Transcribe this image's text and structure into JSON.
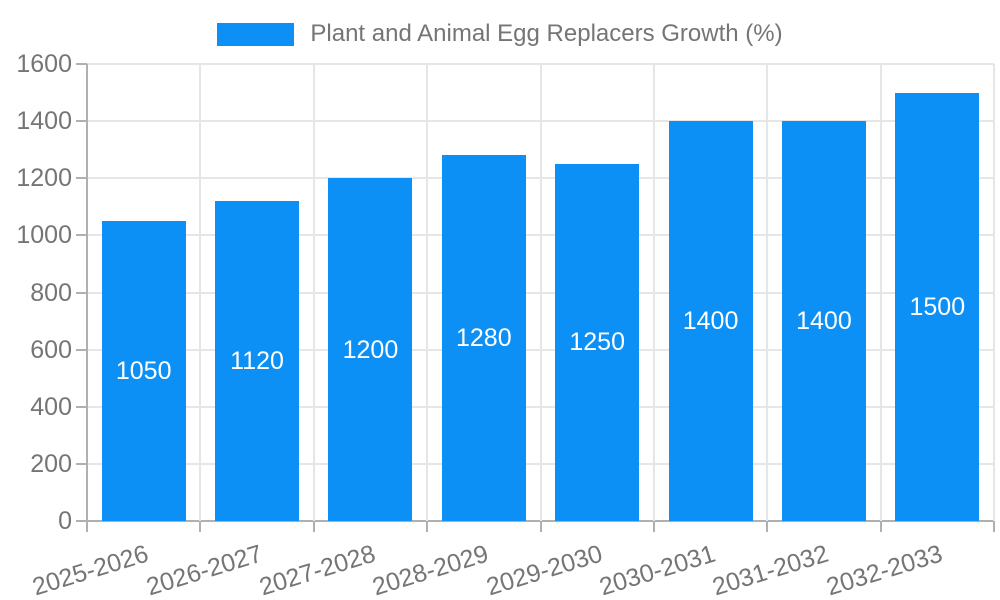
{
  "legend": {
    "label": "Plant and Animal Egg Replacers Growth (%)"
  },
  "chart_data": {
    "type": "bar",
    "title": "Plant and Animal Egg Replacers Growth (%)",
    "series_name": "Plant and Animal Egg Replacers Growth (%)",
    "categories": [
      "2025-2026",
      "2026-2027",
      "2027-2028",
      "2028-2029",
      "2029-2030",
      "2030-2031",
      "2031-2032",
      "2032-2033"
    ],
    "values": [
      1050,
      1120,
      1200,
      1280,
      1250,
      1400,
      1400,
      1500
    ],
    "xlabel": "",
    "ylabel": "",
    "ylim": [
      0,
      1600
    ],
    "yticks": [
      0,
      200,
      400,
      600,
      800,
      1000,
      1200,
      1400,
      1600
    ],
    "grid": true,
    "legend_position": "top",
    "bar_color": "#0d90f5",
    "value_label_color": "#ffffff",
    "axis_text_color": "#757575",
    "grid_color": "#e6e6e6",
    "axis_line_color": "#b0b0b0"
  }
}
